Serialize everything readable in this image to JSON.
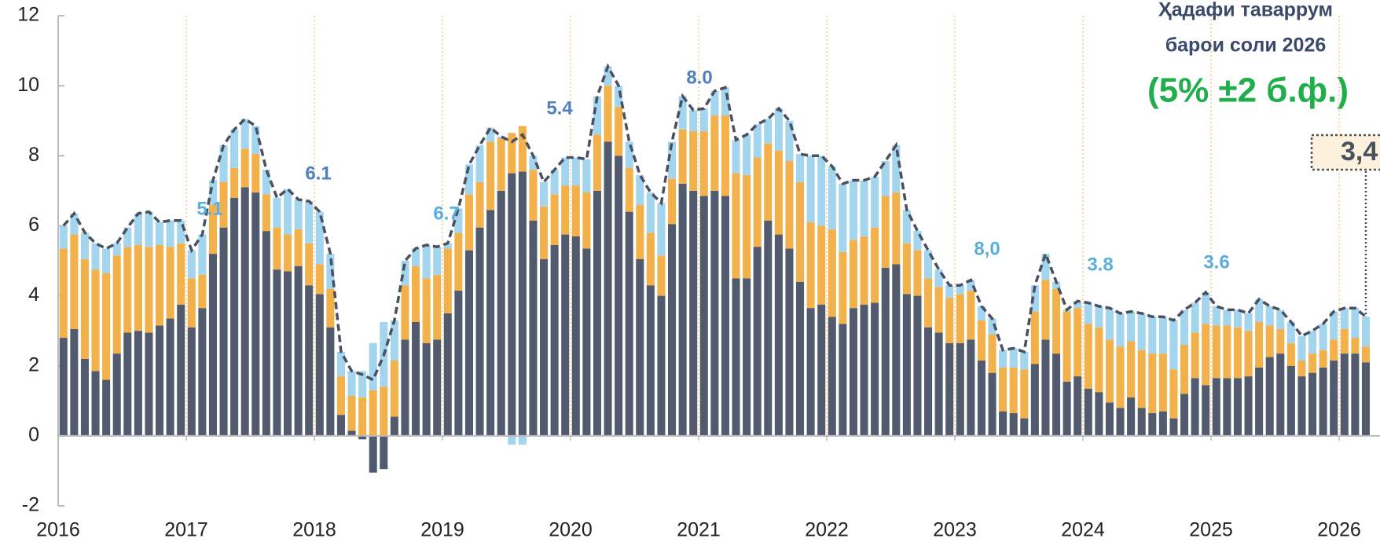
{
  "chart_data": {
    "type": "bar",
    "stacked": true,
    "categories": [
      "2016",
      null,
      null,
      null,
      null,
      null,
      null,
      null,
      null,
      null,
      null,
      null,
      "2017",
      null,
      null,
      null,
      null,
      null,
      null,
      null,
      null,
      null,
      null,
      null,
      "2018",
      null,
      null,
      null,
      null,
      null,
      null,
      null,
      null,
      null,
      null,
      null,
      "2019",
      null,
      null,
      null,
      null,
      null,
      null,
      null,
      null,
      null,
      null,
      null,
      "2020",
      null,
      null,
      null,
      null,
      null,
      null,
      null,
      null,
      null,
      null,
      null,
      "2021",
      null,
      null,
      null,
      null,
      null,
      null,
      null,
      null,
      null,
      null,
      null,
      "2022",
      null,
      null,
      null,
      null,
      null,
      null,
      null,
      null,
      null,
      null,
      null,
      "2023",
      null,
      null,
      null,
      null,
      null,
      null,
      null,
      null,
      null,
      null,
      null,
      "2024",
      null,
      null,
      null,
      null,
      null,
      null,
      null,
      null,
      null,
      null,
      null,
      "2025",
      null,
      null,
      null,
      null,
      null,
      null,
      null,
      null,
      null,
      null,
      null,
      "2026",
      null,
      null
    ],
    "series": [
      {
        "color": "#525b6e",
        "values": [
          2.8,
          3.05,
          2.2,
          1.85,
          1.6,
          2.35,
          2.95,
          3.0,
          2.95,
          3.15,
          3.35,
          3.75,
          3.1,
          3.65,
          5.2,
          5.95,
          6.8,
          7.1,
          6.95,
          5.85,
          4.75,
          4.7,
          4.85,
          4.3,
          4.05,
          3.1,
          0.6,
          0.15,
          -0.1,
          -1.05,
          -0.95,
          0.55,
          2.75,
          3.25,
          2.65,
          2.75,
          3.5,
          4.15,
          5.3,
          5.95,
          6.45,
          7.0,
          7.5,
          7.55,
          6.15,
          5.05,
          5.45,
          5.75,
          5.7,
          5.35,
          7.0,
          8.4,
          8.0,
          6.4,
          5.05,
          4.3,
          4.0,
          6.05,
          7.2,
          7.0,
          6.85,
          7.0,
          6.85,
          4.5,
          4.5,
          5.4,
          6.15,
          5.75,
          5.35,
          4.4,
          3.65,
          3.75,
          3.4,
          3.2,
          3.65,
          3.75,
          3.8,
          4.8,
          4.9,
          4.05,
          4.0,
          3.1,
          2.95,
          2.65,
          2.65,
          2.75,
          2.15,
          1.8,
          0.7,
          0.65,
          0.5,
          2.05,
          2.75,
          2.35,
          1.55,
          1.7,
          1.35,
          1.25,
          0.95,
          0.8,
          1.1,
          0.8,
          0.65,
          0.7,
          0.5,
          1.2,
          1.65,
          1.45,
          1.65,
          1.65,
          1.65,
          1.7,
          1.95,
          2.25,
          2.35,
          2.0,
          1.7,
          1.8,
          1.95,
          2.15,
          2.35,
          2.35,
          2.1
        ]
      },
      {
        "color": "#f2b14a",
        "values": [
          2.55,
          2.7,
          2.85,
          2.9,
          3.05,
          2.8,
          2.45,
          2.45,
          2.45,
          2.3,
          2.05,
          1.75,
          1.4,
          0.95,
          1.4,
          1.3,
          0.85,
          1.1,
          1.1,
          1.05,
          1.2,
          1.05,
          1.05,
          1.2,
          0.85,
          1.1,
          1.1,
          1.0,
          1.1,
          1.3,
          1.4,
          1.6,
          1.55,
          1.6,
          1.85,
          1.85,
          1.85,
          1.65,
          1.6,
          1.3,
          1.95,
          1.5,
          1.15,
          1.3,
          1.45,
          1.5,
          1.45,
          1.4,
          1.45,
          1.6,
          1.6,
          1.6,
          1.4,
          1.25,
          1.55,
          1.5,
          1.15,
          1.3,
          1.55,
          1.7,
          1.85,
          2.15,
          2.3,
          3.0,
          2.95,
          2.55,
          2.2,
          2.4,
          2.5,
          2.85,
          2.45,
          2.25,
          2.5,
          2.05,
          1.95,
          1.95,
          2.15,
          2.05,
          2.05,
          1.45,
          1.3,
          1.4,
          1.3,
          1.3,
          1.4,
          1.4,
          1.15,
          1.1,
          1.25,
          1.3,
          1.4,
          1.5,
          1.7,
          1.85,
          2.0,
          1.95,
          1.85,
          1.85,
          1.8,
          1.75,
          1.6,
          1.65,
          1.7,
          1.65,
          1.4,
          1.4,
          1.3,
          1.75,
          1.5,
          1.5,
          1.45,
          1.3,
          1.3,
          0.9,
          0.7,
          0.65,
          0.45,
          0.55,
          0.5,
          0.6,
          0.7,
          0.45,
          0.45
        ]
      },
      {
        "color": "#a3d5ef",
        "values": [
          0.65,
          0.6,
          0.75,
          0.75,
          0.7,
          0.35,
          0.55,
          0.9,
          1.0,
          0.65,
          0.75,
          0.65,
          0.8,
          1.15,
          0.7,
          1.05,
          1.1,
          0.85,
          0.8,
          0.7,
          0.85,
          1.3,
          0.85,
          1.2,
          1.5,
          1.0,
          0.7,
          0.7,
          0.75,
          1.35,
          1.85,
          1.15,
          0.7,
          0.5,
          0.95,
          0.8,
          0.15,
          0.7,
          0.85,
          1.05,
          0.4,
          0.05,
          -0.25,
          -0.25,
          0.4,
          0.7,
          0.7,
          0.8,
          0.8,
          0.95,
          1.1,
          0.55,
          0.6,
          0.75,
          0.85,
          1.15,
          1.5,
          1.05,
          0.95,
          0.6,
          0.65,
          0.7,
          0.8,
          0.95,
          1.15,
          0.95,
          0.7,
          1.2,
          1.15,
          0.8,
          1.9,
          2.0,
          1.8,
          1.95,
          1.7,
          1.6,
          1.45,
          1.0,
          1.35,
          0.95,
          0.55,
          0.8,
          0.5,
          0.35,
          0.25,
          0.3,
          0.4,
          0.45,
          0.5,
          0.55,
          0.5,
          0.75,
          0.75,
          0.2,
          0.05,
          0.2,
          0.6,
          0.6,
          0.9,
          0.95,
          0.85,
          1.05,
          1.05,
          1.05,
          1.4,
          1.0,
          0.85,
          0.9,
          0.55,
          0.45,
          0.5,
          0.5,
          0.65,
          0.55,
          0.55,
          0.6,
          0.7,
          0.65,
          0.75,
          0.8,
          0.6,
          0.85,
          0.85
        ]
      },
      {
        "type": "line",
        "color": "#4a5060",
        "values": [
          6.0,
          6.35,
          5.8,
          5.5,
          5.35,
          5.5,
          5.95,
          6.35,
          6.4,
          6.1,
          6.15,
          6.15,
          5.3,
          5.75,
          7.3,
          8.3,
          8.75,
          9.05,
          8.85,
          7.6,
          6.8,
          7.05,
          6.75,
          6.7,
          6.4,
          5.2,
          2.4,
          1.85,
          1.75,
          1.6,
          2.3,
          3.3,
          5.0,
          5.35,
          5.45,
          5.4,
          5.5,
          6.5,
          7.75,
          8.3,
          8.8,
          8.55,
          8.4,
          8.6,
          8.0,
          7.25,
          7.6,
          7.95,
          7.95,
          7.9,
          9.7,
          10.55,
          10.0,
          8.4,
          7.45,
          6.95,
          6.65,
          8.4,
          9.7,
          9.3,
          9.35,
          9.85,
          9.95,
          8.45,
          8.6,
          8.9,
          9.05,
          9.35,
          9.0,
          8.05,
          8.0,
          8.0,
          7.7,
          7.2,
          7.3,
          7.3,
          7.4,
          7.85,
          8.3,
          6.45,
          5.85,
          5.3,
          4.75,
          4.3,
          4.3,
          4.45,
          3.7,
          3.35,
          2.45,
          2.5,
          2.4,
          4.3,
          5.2,
          4.4,
          3.6,
          3.85,
          3.8,
          3.7,
          3.65,
          3.5,
          3.55,
          3.5,
          3.4,
          3.4,
          3.3,
          3.6,
          3.8,
          4.1,
          3.7,
          3.6,
          3.6,
          3.5,
          3.9,
          3.7,
          3.6,
          3.25,
          2.85,
          3.0,
          3.2,
          3.55,
          3.65,
          3.65,
          3.4
        ]
      }
    ],
    "ylim": [
      -2,
      12
    ],
    "yticks": [
      -2,
      0,
      2,
      4,
      6,
      8,
      10,
      12
    ],
    "annotations": [
      "5.1",
      "6.1",
      "6.7",
      "5.4",
      "8.0",
      "8,0",
      "3.8",
      "3.6"
    ],
    "target_title": [
      "Ҳадафи таваррум",
      "барои соли 2026"
    ],
    "target_range": "(5% ±2 б.ф.)",
    "callout": "3,4"
  }
}
